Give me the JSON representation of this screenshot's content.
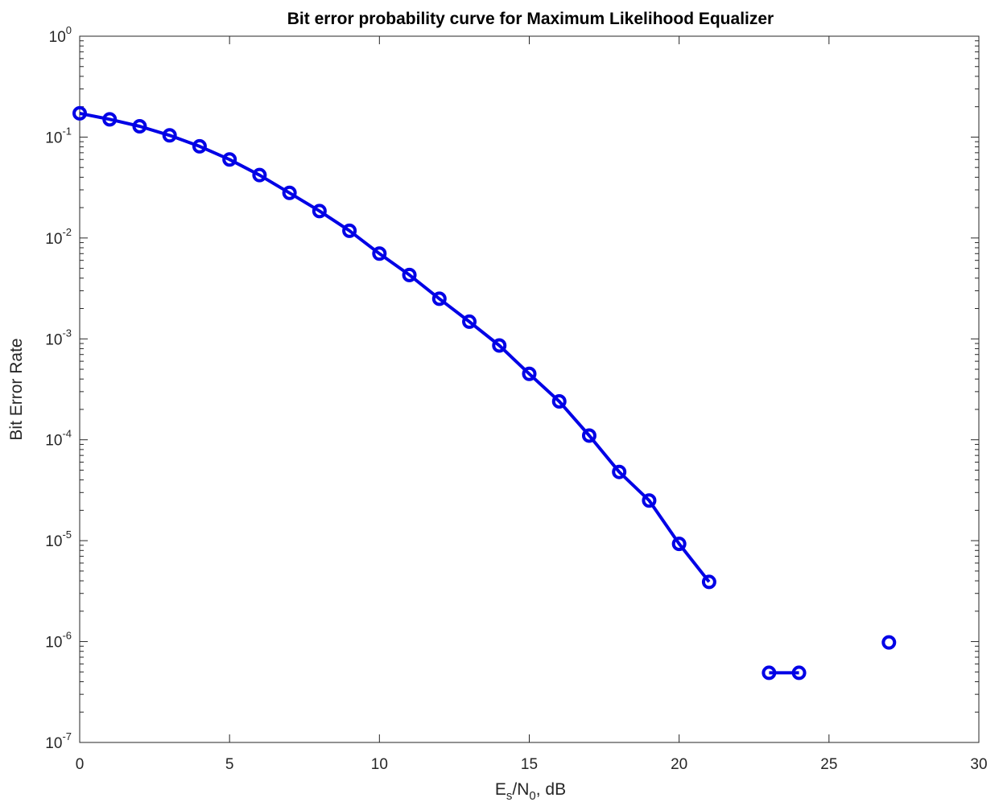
{
  "chart_data": {
    "type": "line",
    "title": "Bit error probability curve for Maximum Likelihood Equalizer",
    "xlabel": {
      "base": "E",
      "sub1": "s",
      "mid": "/N",
      "sub2": "0",
      "tail": ",  dB"
    },
    "ylabel": "Bit Error Rate",
    "xlim": [
      0,
      30
    ],
    "ylim": [
      1e-07,
      1
    ],
    "yscale": "log",
    "grid": false,
    "x_ticks": [
      "0",
      "5",
      "10",
      "15",
      "20",
      "25",
      "30"
    ],
    "y_ticks": [
      {
        "base": "10",
        "exp": "0"
      },
      {
        "base": "10",
        "exp": "-1"
      },
      {
        "base": "10",
        "exp": "-2"
      },
      {
        "base": "10",
        "exp": "-3"
      },
      {
        "base": "10",
        "exp": "-4"
      },
      {
        "base": "10",
        "exp": "-5"
      },
      {
        "base": "10",
        "exp": "-6"
      },
      {
        "base": "10",
        "exp": "-7"
      }
    ],
    "series": [
      {
        "color": "#0000e6",
        "marker": "circle",
        "x": [
          0,
          1,
          2,
          3,
          4,
          5,
          6,
          7,
          8,
          9,
          10,
          11,
          12,
          13,
          14,
          15,
          16,
          17,
          18,
          19,
          20,
          21,
          22,
          23,
          24,
          25,
          26,
          27
        ],
        "y": [
          0.172,
          0.15,
          0.128,
          0.104,
          0.081,
          0.06,
          0.042,
          0.028,
          0.0185,
          0.0118,
          0.007,
          0.0043,
          0.0025,
          0.00148,
          0.00086,
          0.00045,
          0.00024,
          0.00011,
          4.8e-05,
          2.5e-05,
          9.3e-06,
          3.9e-06,
          null,
          4.9e-07,
          4.9e-07,
          null,
          null,
          9.8e-07
        ]
      }
    ]
  }
}
